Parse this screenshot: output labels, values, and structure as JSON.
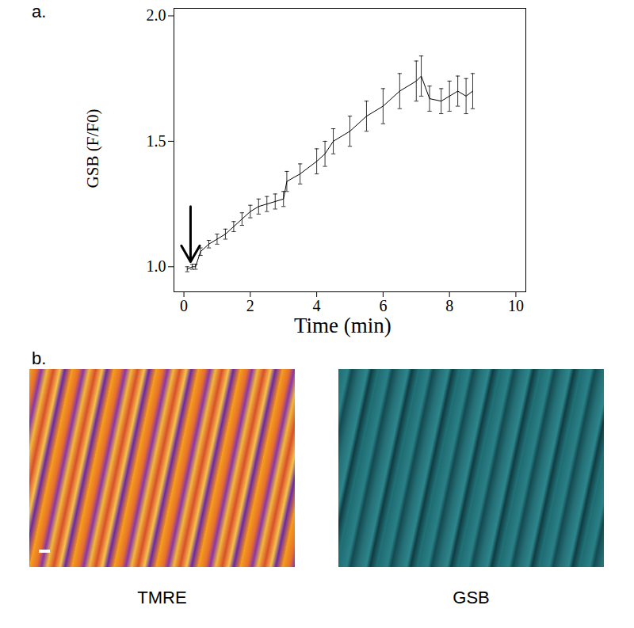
{
  "chart_data": {
    "type": "line",
    "title": "a.",
    "xlabel": "Time (min)",
    "ylabel": "GSB (F/F0)",
    "x": [
      0.1,
      0.25,
      0.35,
      0.5,
      0.75,
      1.0,
      1.25,
      1.5,
      1.75,
      2.0,
      2.25,
      2.5,
      2.75,
      3.0,
      3.1,
      3.5,
      4.0,
      4.25,
      4.5,
      5.0,
      5.5,
      6.0,
      6.5,
      7.0,
      7.15,
      7.4,
      7.75,
      8.0,
      8.25,
      8.5,
      8.7
    ],
    "series": [
      {
        "name": "GSB",
        "color": "#000000",
        "values": [
          0.99,
          1.0,
          1.0,
          1.06,
          1.09,
          1.11,
          1.13,
          1.16,
          1.19,
          1.22,
          1.24,
          1.25,
          1.26,
          1.27,
          1.34,
          1.37,
          1.42,
          1.45,
          1.5,
          1.54,
          1.6,
          1.64,
          1.7,
          1.74,
          1.76,
          1.67,
          1.66,
          1.68,
          1.7,
          1.68,
          1.7
        ],
        "errors": [
          0.01,
          0.01,
          0.01,
          0.015,
          0.015,
          0.02,
          0.02,
          0.02,
          0.025,
          0.025,
          0.03,
          0.03,
          0.03,
          0.03,
          0.04,
          0.04,
          0.05,
          0.05,
          0.05,
          0.06,
          0.06,
          0.07,
          0.07,
          0.08,
          0.08,
          0.05,
          0.05,
          0.06,
          0.06,
          0.07,
          0.07
        ]
      }
    ],
    "arrow_x": 0.2,
    "arrow_y": [
      1.24,
      1.02
    ],
    "xlim": [
      -0.3,
      10.3
    ],
    "xticks": [
      0,
      2,
      4,
      6,
      8,
      10
    ],
    "ylim": [
      0.9,
      2.03
    ],
    "yticks": [
      {
        "value": 1.0,
        "label": "1.0"
      },
      {
        "value": 1.5,
        "label": "1.5"
      },
      {
        "value": 2.0,
        "label": "2.0"
      }
    ],
    "grid": false
  },
  "panel_b": {
    "title": "b.",
    "images": [
      {
        "label": "TMRE"
      },
      {
        "label": "GSB"
      }
    ]
  }
}
